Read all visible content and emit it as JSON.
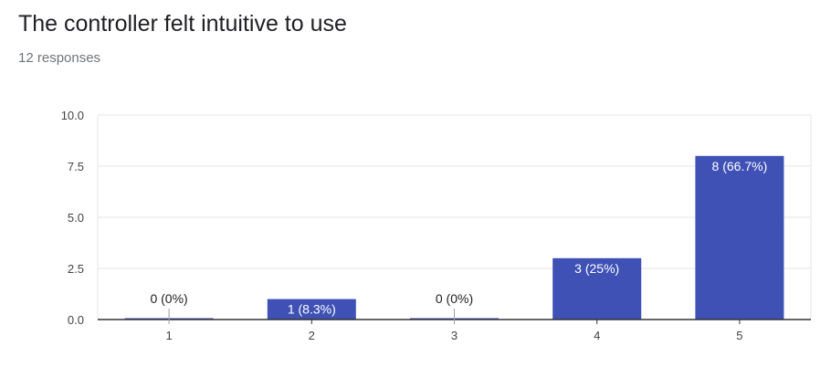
{
  "header": {
    "title": "The controller felt intuitive to use",
    "subtitle": "12 responses"
  },
  "colors": {
    "bar": "#3f51b5",
    "grid": "#e6e6e6",
    "baseline": "#333333",
    "zero_stub": "#9e9e9e",
    "label_inside": "#ffffff",
    "label_outside": "#202124"
  },
  "chart_data": {
    "type": "bar",
    "categories": [
      "1",
      "2",
      "3",
      "4",
      "5"
    ],
    "values": [
      0,
      1,
      0,
      3,
      8
    ],
    "data_labels": [
      "0 (0%)",
      "1 (8.3%)",
      "0 (0%)",
      "3 (25%)",
      "8 (66.7%)"
    ],
    "title": "The controller felt intuitive to use",
    "xlabel": "",
    "ylabel": "",
    "ylim": [
      0,
      10
    ],
    "yticks": [
      "0.0",
      "2.5",
      "5.0",
      "7.5",
      "10.0"
    ],
    "grid": true,
    "legend": "none"
  }
}
